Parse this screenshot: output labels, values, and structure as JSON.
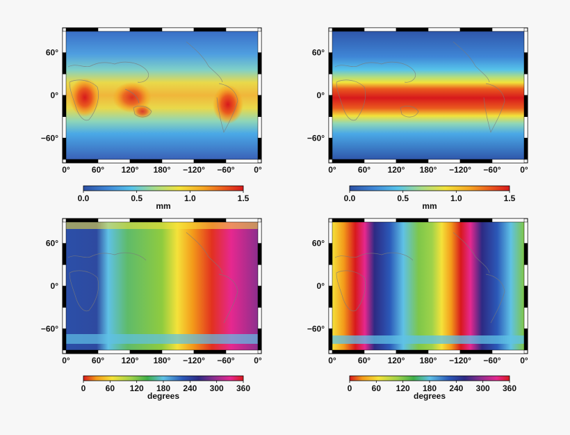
{
  "panels": [
    {
      "id": "amplitude-land",
      "field": "amplitude",
      "x_ticks": [
        "0°",
        "60°",
        "120°",
        "180°",
        "−120°",
        "−60°",
        "0°"
      ],
      "y_ticks": [
        "60°",
        "0°",
        "−60°"
      ],
      "colorbar": {
        "ticks": [
          "0.0",
          "0.5",
          "1.0",
          "1.5"
        ],
        "range": [
          0,
          1.5
        ],
        "unit": "mm",
        "colormap": "jet-like"
      }
    },
    {
      "id": "amplitude-zonal",
      "field": "amplitude",
      "x_ticks": [
        "0°",
        "60°",
        "120°",
        "180°",
        "−120°",
        "−60°",
        "0°"
      ],
      "y_ticks": [
        "60°",
        "0°",
        "−60°"
      ],
      "colorbar": {
        "ticks": [
          "0.0",
          "0.5",
          "1.0",
          "1.5"
        ],
        "range": [
          0,
          1.5
        ],
        "unit": "mm",
        "colormap": "jet-like"
      }
    },
    {
      "id": "phase-diurnal",
      "field": "phase",
      "x_ticks": [
        "0°",
        "60°",
        "120°",
        "180°",
        "−120°",
        "−60°",
        "0°"
      ],
      "y_ticks": [
        "60°",
        "0°",
        "−60°"
      ],
      "colorbar": {
        "ticks": [
          "0",
          "60",
          "120",
          "180",
          "240",
          "300",
          "360"
        ],
        "range": [
          0,
          360
        ],
        "unit": "degrees",
        "colormap": "cyclic"
      }
    },
    {
      "id": "phase-semidiurnal",
      "field": "phase",
      "x_ticks": [
        "0°",
        "60°",
        "120°",
        "180°",
        "−120°",
        "−60°",
        "0°"
      ],
      "y_ticks": [
        "60°",
        "0°",
        "−60°"
      ],
      "colorbar": {
        "ticks": [
          "0",
          "60",
          "120",
          "180",
          "240",
          "300",
          "360"
        ],
        "range": [
          0,
          360
        ],
        "unit": "degrees",
        "colormap": "cyclic"
      }
    }
  ],
  "colors": {
    "amplitude_stops": [
      "#2c4fa3",
      "#3f86d6",
      "#56c3ea",
      "#a8dc88",
      "#f2e23b",
      "#f5a623",
      "#ea5a1e",
      "#d7191c"
    ],
    "phase_stops": [
      "#d7191c",
      "#f39a1a",
      "#f5e23a",
      "#9fd24a",
      "#3fae49",
      "#5fc1e6",
      "#2b59b8",
      "#2d2a83",
      "#8d2f8e",
      "#e6288f",
      "#d7191c"
    ],
    "frame": "#000000",
    "coastline": "#7a7a7a"
  }
}
